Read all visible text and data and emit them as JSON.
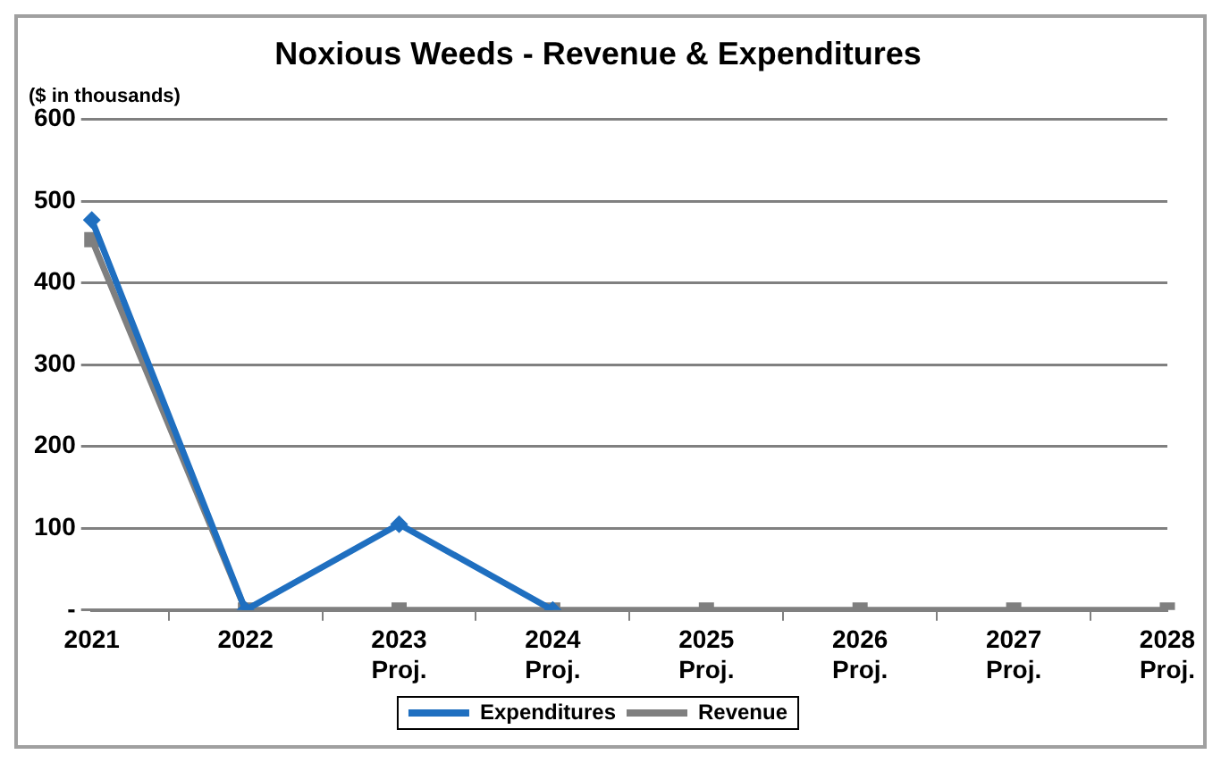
{
  "chart_data": {
    "type": "line",
    "title": "Noxious Weeds - Revenue & Expenditures",
    "subtitle": "($ in thousands)",
    "categories": [
      "2021",
      "2022",
      "2023\nProj.",
      "2024\nProj.",
      "2025\nProj.",
      "2026\nProj.",
      "2027\nProj.",
      "2028\nProj."
    ],
    "series": [
      {
        "name": "Expenditures",
        "color": "#1f6fc0",
        "marker": "diamond",
        "values": [
          477,
          0,
          105,
          0,
          null,
          null,
          null,
          null
        ]
      },
      {
        "name": "Revenue",
        "color": "#7f7f7f",
        "marker": "square",
        "values": [
          453,
          0,
          0,
          0,
          0,
          0,
          0,
          0
        ]
      }
    ],
    "ylim": [
      0,
      600
    ],
    "yticks": [
      {
        "value": 0,
        "label": "-"
      },
      100,
      200,
      300,
      400,
      500,
      600
    ],
    "grid": "y",
    "legend": "bottom",
    "line_style": "solid"
  }
}
